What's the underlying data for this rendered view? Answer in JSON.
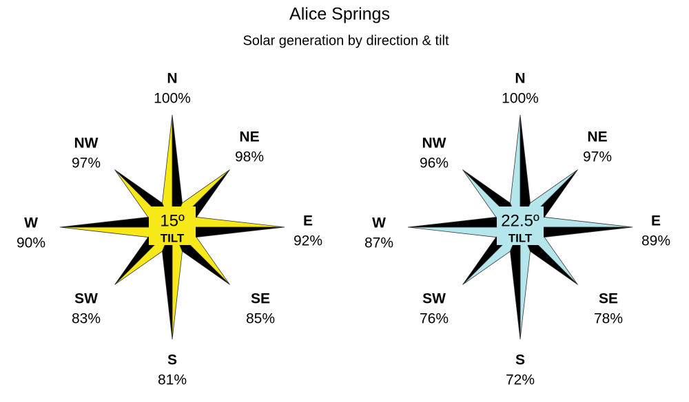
{
  "title": "Alice Springs",
  "subtitle": "Solar generation by direction & tilt",
  "roses": [
    {
      "tilt": "15º",
      "tilt_label": "TILT",
      "directions": [
        {
          "label": "N",
          "value": "100%"
        },
        {
          "label": "NE",
          "value": "98%"
        },
        {
          "label": "E",
          "value": "92%"
        },
        {
          "label": "SE",
          "value": "85%"
        },
        {
          "label": "S",
          "value": "81%"
        },
        {
          "label": "SW",
          "value": "83%"
        },
        {
          "label": "W",
          "value": "90%"
        },
        {
          "label": "NW",
          "value": "97%"
        }
      ]
    },
    {
      "tilt": "22.5º",
      "tilt_label": "TILT",
      "directions": [
        {
          "label": "N",
          "value": "100%"
        },
        {
          "label": "NE",
          "value": "97%"
        },
        {
          "label": "E",
          "value": "89%"
        },
        {
          "label": "SE",
          "value": "78%"
        },
        {
          "label": "S",
          "value": "72%"
        },
        {
          "label": "SW",
          "value": "76%"
        },
        {
          "label": "W",
          "value": "87%"
        },
        {
          "label": "NW",
          "value": "96%"
        }
      ]
    }
  ]
}
